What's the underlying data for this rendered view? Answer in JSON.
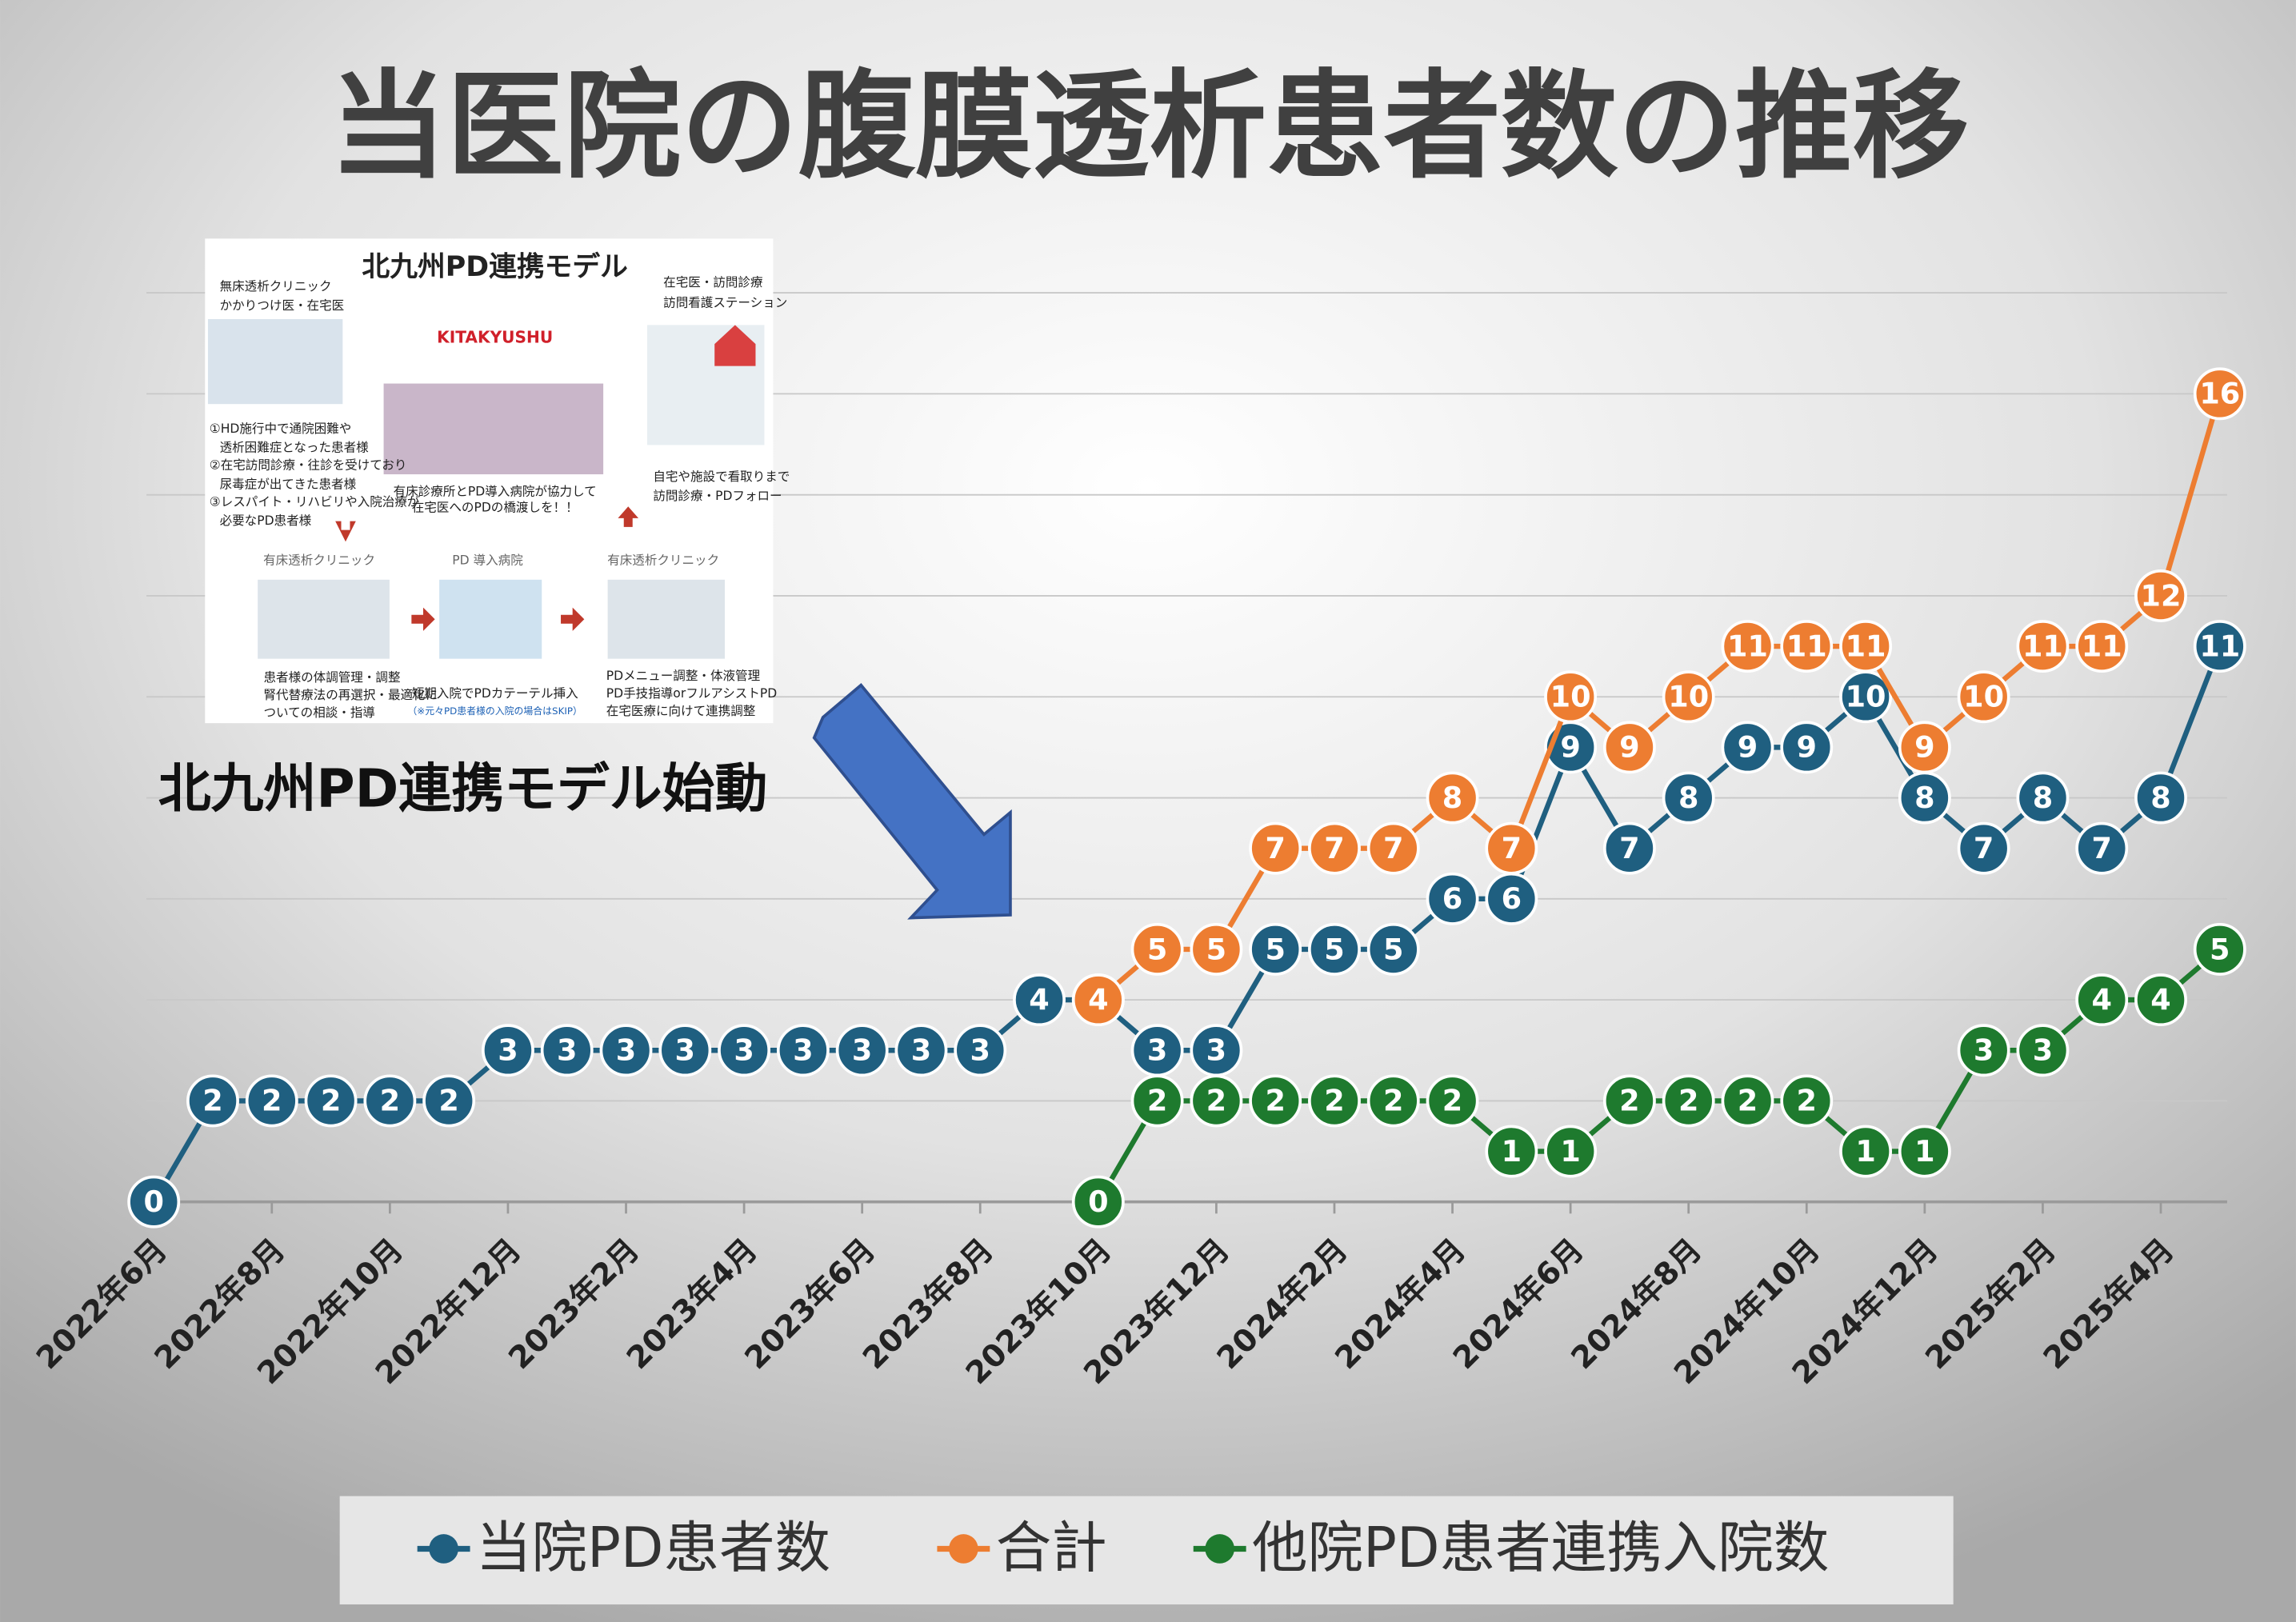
{
  "chart_data": {
    "type": "line",
    "title": "当医院の腹膜透析患者数の推移",
    "annotation": "北九州PD連携モデル始動",
    "categories": [
      "2022年6月",
      null,
      "2022年8月",
      null,
      "2022年10月",
      null,
      "2022年12月",
      null,
      "2023年2月",
      null,
      "2023年4月",
      null,
      "2023年6月",
      null,
      "2023年8月",
      null,
      "2023年10月",
      null,
      "2023年12月",
      null,
      "2024年2月",
      null,
      "2024年4月",
      null,
      "2024年6月",
      null,
      "2024年8月",
      null,
      "2024年10月",
      null,
      "2024年12月",
      null,
      "2025年2月",
      null,
      "2025年4月",
      null
    ],
    "series": [
      {
        "name": "当院PD患者数",
        "color": "#1f5f80",
        "values": [
          0,
          2,
          2,
          2,
          2,
          2,
          3,
          3,
          3,
          3,
          3,
          3,
          3,
          3,
          3,
          4,
          4,
          3,
          3,
          5,
          5,
          5,
          6,
          6,
          9,
          7,
          8,
          9,
          9,
          10,
          8,
          7,
          8,
          7,
          8,
          11
        ]
      },
      {
        "name": "合計",
        "color": "#ed7d31",
        "values": [
          null,
          null,
          null,
          null,
          null,
          null,
          null,
          null,
          null,
          null,
          null,
          null,
          null,
          null,
          null,
          null,
          4,
          5,
          5,
          7,
          7,
          7,
          8,
          7,
          10,
          9,
          10,
          11,
          11,
          11,
          9,
          10,
          11,
          11,
          12,
          16
        ]
      },
      {
        "name": "他院PD患者連携入院数",
        "color": "#1e7a2e",
        "values": [
          null,
          null,
          null,
          null,
          null,
          null,
          null,
          null,
          null,
          null,
          null,
          null,
          null,
          null,
          null,
          null,
          0,
          2,
          2,
          2,
          2,
          2,
          2,
          1,
          1,
          2,
          2,
          2,
          2,
          1,
          1,
          3,
          3,
          4,
          4,
          5
        ]
      }
    ],
    "ylim": [
      0,
      18
    ],
    "yticks": [
      0,
      2,
      4,
      6,
      8,
      10,
      12,
      14,
      16,
      18
    ],
    "grid": true,
    "legend": "bottom"
  },
  "inset": {
    "title": "北九州PD連携モデル",
    "logo": "KITAKYUSHU",
    "top_left": [
      "無床透析クリニック",
      "かかりつけ医・在宅医"
    ],
    "top_right": [
      "在宅医・訪問診療",
      "訪問看護ステーション"
    ],
    "targets": [
      "①HD施行中で通院困難や",
      "透析困難症となった患者様",
      "②在宅訪問診療・往診を受けており",
      "尿毒症が出てきた患者様",
      "③レスパイト・リハビリや入院治療が",
      "必要なPD患者様"
    ],
    "center": [
      "有床診療所とPD導入病院が協力して",
      "在宅医へのPDの橋渡しを！！"
    ],
    "right": [
      "自宅や施設で看取りまで",
      "訪問診療・PDフォロー"
    ],
    "steps": [
      "有床透析クリニック",
      "PD 導入病院",
      "有床透析クリニック"
    ],
    "step1": [
      "患者様の体調管理・調整",
      "腎代替療法の再選択・最適化に",
      "ついての相談・指導"
    ],
    "step2": [
      "短期入院でPDカテーテル挿入",
      "（※元々PD患者様の入院の場合はSKIP）"
    ],
    "step3": [
      "PDメニュー調整・体液管理",
      "PD手技指導orフルアシストPD",
      "在宅医療に向けて連携調整"
    ]
  }
}
